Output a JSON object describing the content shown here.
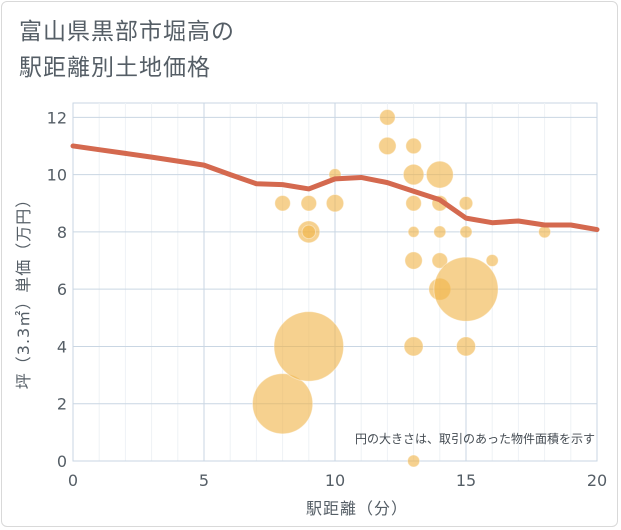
{
  "title": {
    "line1": "富山県黒部市堀高の",
    "line2": "駅距離別土地価格"
  },
  "colors": {
    "line": "#d4694f",
    "bubble": "#f0b44a",
    "grid": "#c9d6e3",
    "text": "#555e66"
  },
  "chart_data": {
    "type": "scatter",
    "xlabel": "駅距離（分）",
    "ylabel": "坪（3.3㎡）単価（万円）",
    "xlim": [
      0,
      20
    ],
    "ylim": [
      0,
      12.5
    ],
    "xticks": [
      0,
      5,
      10,
      15,
      20
    ],
    "yticks": [
      0,
      2,
      4,
      6,
      8,
      10,
      12
    ],
    "grid": true,
    "annotation": "円の大きさは、取引のあった物件面積を示す",
    "series": [
      {
        "type": "line",
        "points": [
          {
            "x": 0,
            "y": 11.0
          },
          {
            "x": 1,
            "y": 10.87
          },
          {
            "x": 2,
            "y": 10.74
          },
          {
            "x": 3,
            "y": 10.61
          },
          {
            "x": 4,
            "y": 10.47
          },
          {
            "x": 5,
            "y": 10.33
          },
          {
            "x": 6,
            "y": 10.0
          },
          {
            "x": 7,
            "y": 9.68
          },
          {
            "x": 8,
            "y": 9.65
          },
          {
            "x": 9,
            "y": 9.5
          },
          {
            "x": 10,
            "y": 9.85
          },
          {
            "x": 11,
            "y": 9.9
          },
          {
            "x": 12,
            "y": 9.72
          },
          {
            "x": 13,
            "y": 9.42
          },
          {
            "x": 14,
            "y": 9.12
          },
          {
            "x": 15,
            "y": 8.48
          },
          {
            "x": 16,
            "y": 8.32
          },
          {
            "x": 17,
            "y": 8.38
          },
          {
            "x": 18,
            "y": 8.24
          },
          {
            "x": 19,
            "y": 8.24
          },
          {
            "x": 20,
            "y": 8.08
          }
        ]
      },
      {
        "type": "bubble",
        "points": [
          {
            "x": 8,
            "y": 9.0,
            "size": 2
          },
          {
            "x": 8,
            "y": 2.0,
            "size": 30
          },
          {
            "x": 9,
            "y": 9.0,
            "size": 2
          },
          {
            "x": 9,
            "y": 8.0,
            "size": 4
          },
          {
            "x": 9,
            "y": 8.0,
            "size": 1.5
          },
          {
            "x": 9,
            "y": 4.0,
            "size": 40
          },
          {
            "x": 10,
            "y": 10.0,
            "size": 1.2
          },
          {
            "x": 10,
            "y": 9.0,
            "size": 2.5
          },
          {
            "x": 12,
            "y": 12.0,
            "size": 2
          },
          {
            "x": 12,
            "y": 11.0,
            "size": 2.5
          },
          {
            "x": 13,
            "y": 11.0,
            "size": 2
          },
          {
            "x": 13,
            "y": 10.0,
            "size": 3.5
          },
          {
            "x": 13,
            "y": 9.0,
            "size": 2
          },
          {
            "x": 13,
            "y": 8.0,
            "size": 1
          },
          {
            "x": 13,
            "y": 7.0,
            "size": 2.5
          },
          {
            "x": 13,
            "y": 4.0,
            "size": 3
          },
          {
            "x": 13,
            "y": 0.0,
            "size": 1.2
          },
          {
            "x": 14,
            "y": 10.0,
            "size": 6
          },
          {
            "x": 14,
            "y": 9.0,
            "size": 2
          },
          {
            "x": 14,
            "y": 8.0,
            "size": 1.2
          },
          {
            "x": 14,
            "y": 7.0,
            "size": 2
          },
          {
            "x": 14,
            "y": 6.0,
            "size": 4
          },
          {
            "x": 15,
            "y": 9.0,
            "size": 1.5
          },
          {
            "x": 15,
            "y": 8.0,
            "size": 1.2
          },
          {
            "x": 15,
            "y": 6.0,
            "size": 34
          },
          {
            "x": 15,
            "y": 4.0,
            "size": 3
          },
          {
            "x": 16,
            "y": 7.0,
            "size": 1.2
          },
          {
            "x": 18,
            "y": 8.0,
            "size": 1.2
          }
        ]
      }
    ]
  }
}
